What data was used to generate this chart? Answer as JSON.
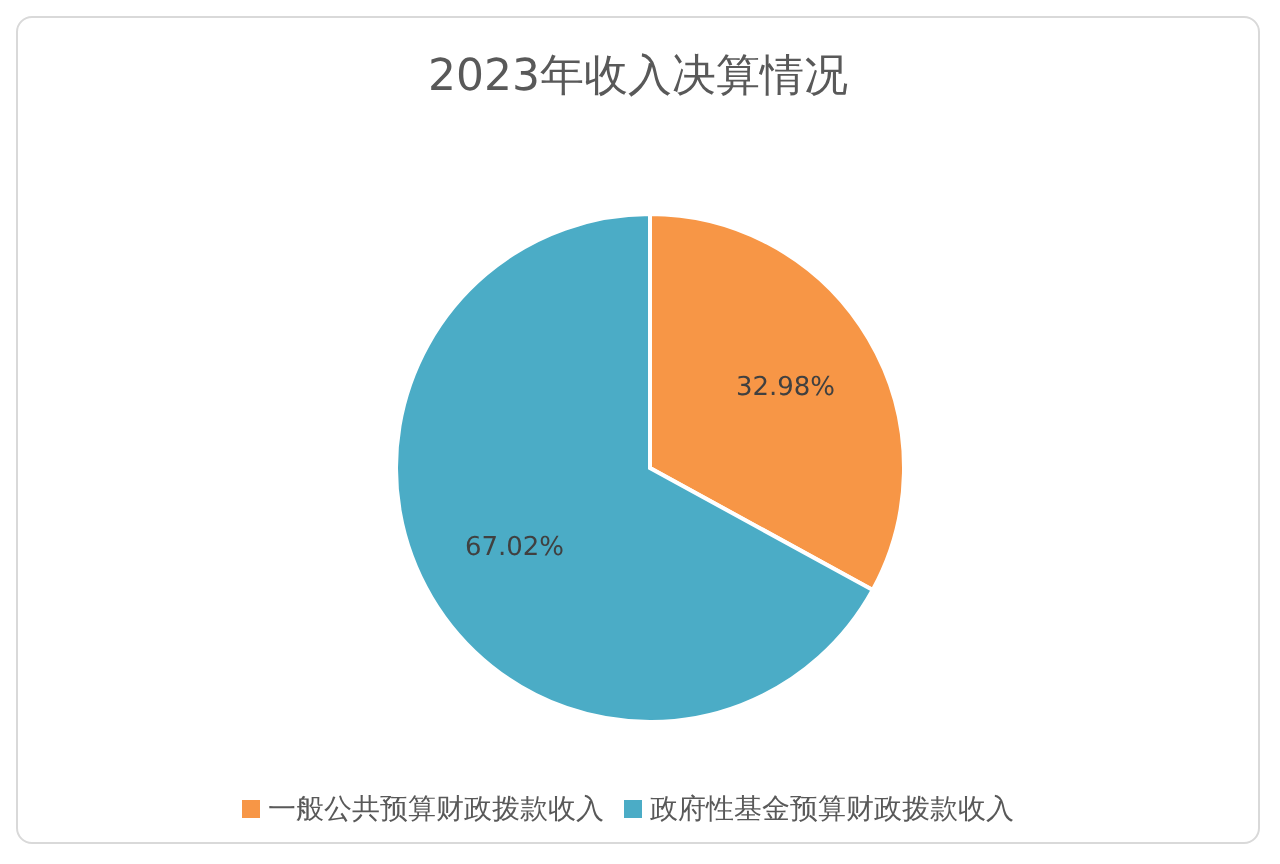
{
  "chart_data": {
    "type": "pie",
    "title": "2023年收入决算情况",
    "categories": [
      "一般公共预算财政拨款收入",
      "政府性基金预算财政拨款收入"
    ],
    "values": [
      32.98,
      67.02
    ],
    "colors": [
      "#f79646",
      "#4bacc6"
    ],
    "value_labels": [
      "32.98%",
      "67.02%"
    ],
    "legend": "bottom"
  }
}
